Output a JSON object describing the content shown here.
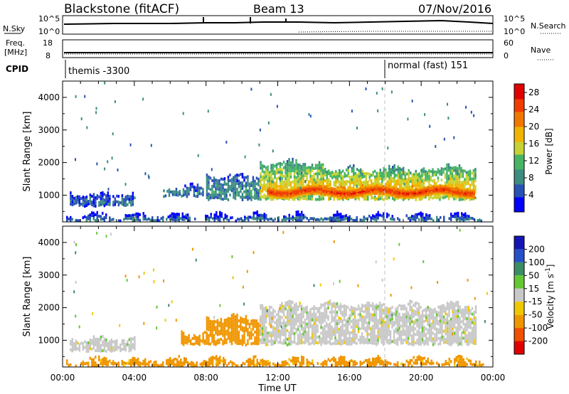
{
  "header": {
    "station": "Blackstone (fitACF)",
    "beam": "Beam 13",
    "date": "07/Nov/2016"
  },
  "noise_panel": {
    "left_label": "N.Sky",
    "right_label": "N.Search",
    "left_ticks": [
      "10^5",
      "10^0"
    ],
    "right_ticks": [
      "10^5",
      "10^0"
    ]
  },
  "freq_panel": {
    "left_label_line1": "Freq.",
    "left_label_line2": "[MHz]",
    "right_label": "Nave",
    "left_ticks": [
      "18",
      "8"
    ],
    "right_ticks": [
      "60",
      "0"
    ]
  },
  "cpid_panel": {
    "label": "CPID",
    "modes": [
      {
        "time": "00:00",
        "text": "themis -3300"
      },
      {
        "time": "18:00",
        "text": "normal (fast) 151"
      }
    ]
  },
  "chart_data": [
    {
      "type": "heatmap",
      "name": "power",
      "ylabel": "Slant Range [km]",
      "ylim": [
        180,
        4500
      ],
      "yticks": [
        "1000",
        "2000",
        "3000",
        "4000"
      ],
      "ytick_values": [
        1000,
        2000,
        3000,
        4000
      ],
      "xlim_hours": [
        0,
        24
      ],
      "colorbar": {
        "label": "Power [dB]",
        "ticks": [
          "4",
          "8",
          "12",
          "16",
          "20",
          "24",
          "28"
        ],
        "range": [
          0,
          30
        ],
        "colors": [
          "#0000ff",
          "#2852b4",
          "#3c8c82",
          "#46b464",
          "#c8d232",
          "#f0b400",
          "#f07800",
          "#f03c00",
          "#e00000"
        ]
      },
      "bands": [
        {
          "t0": 0.4,
          "t1": 4.0,
          "r0": 700,
          "r1": 1050,
          "level": 6
        },
        {
          "t0": 5.6,
          "t1": 7.8,
          "r0": 1000,
          "r1": 1250,
          "level": 8
        },
        {
          "t0": 8.0,
          "t1": 11.0,
          "r0": 900,
          "r1": 1600,
          "level": 9
        },
        {
          "t0": 11.0,
          "t1": 14.5,
          "r0": 900,
          "r1": 2000,
          "level": 17
        },
        {
          "t0": 14.5,
          "t1": 20.0,
          "r0": 900,
          "r1": 1800,
          "level": 19
        },
        {
          "t0": 20.0,
          "t1": 23.0,
          "r0": 900,
          "r1": 1850,
          "level": 18
        },
        {
          "t0": 0.2,
          "t1": 23.5,
          "r0": 250,
          "r1": 380,
          "level": 7
        }
      ],
      "core_band": {
        "t0": 11.4,
        "t1": 23.0,
        "r0": 1000,
        "r1": 1250,
        "level": 26
      }
    },
    {
      "type": "heatmap",
      "name": "velocity",
      "ylabel": "Slant Range [km]",
      "ylim": [
        180,
        4500
      ],
      "yticks": [
        "1000",
        "2000",
        "3000",
        "4000"
      ],
      "ytick_values": [
        1000,
        2000,
        3000,
        4000
      ],
      "xlim_hours": [
        0,
        24
      ],
      "xticks": [
        "00:00",
        "04:00",
        "08:00",
        "12:00",
        "16:00",
        "20:00",
        "00:00"
      ],
      "xlabel": "Time UT",
      "colorbar": {
        "label": "Velocity [m s^-1]",
        "ticks": [
          "200",
          "100",
          "50",
          "15",
          "-15",
          "-50",
          "-100",
          "-200"
        ],
        "colors": [
          "#1414b4",
          "#2850c8",
          "#3c8c64",
          "#64c832",
          "#c8c8c8",
          "#f0c800",
          "#f09600",
          "#f05000",
          "#e00000"
        ]
      },
      "bands": [
        {
          "t0": 0.4,
          "t1": 4.0,
          "r0": 700,
          "r1": 1050,
          "velocity": 0
        },
        {
          "t0": 6.6,
          "t1": 8.0,
          "r0": 900,
          "r1": 1250,
          "velocity": -60
        },
        {
          "t0": 8.0,
          "t1": 11.0,
          "r0": 900,
          "r1": 1700,
          "velocity": -60
        },
        {
          "t0": 11.0,
          "t1": 23.0,
          "r0": 900,
          "r1": 2100,
          "velocity": 0
        },
        {
          "t0": 0.2,
          "t1": 23.5,
          "r0": 250,
          "r1": 400,
          "velocity": -40
        }
      ]
    }
  ],
  "colors": {
    "axes": "#000000",
    "mode_change_line": "#c0c0c0"
  }
}
